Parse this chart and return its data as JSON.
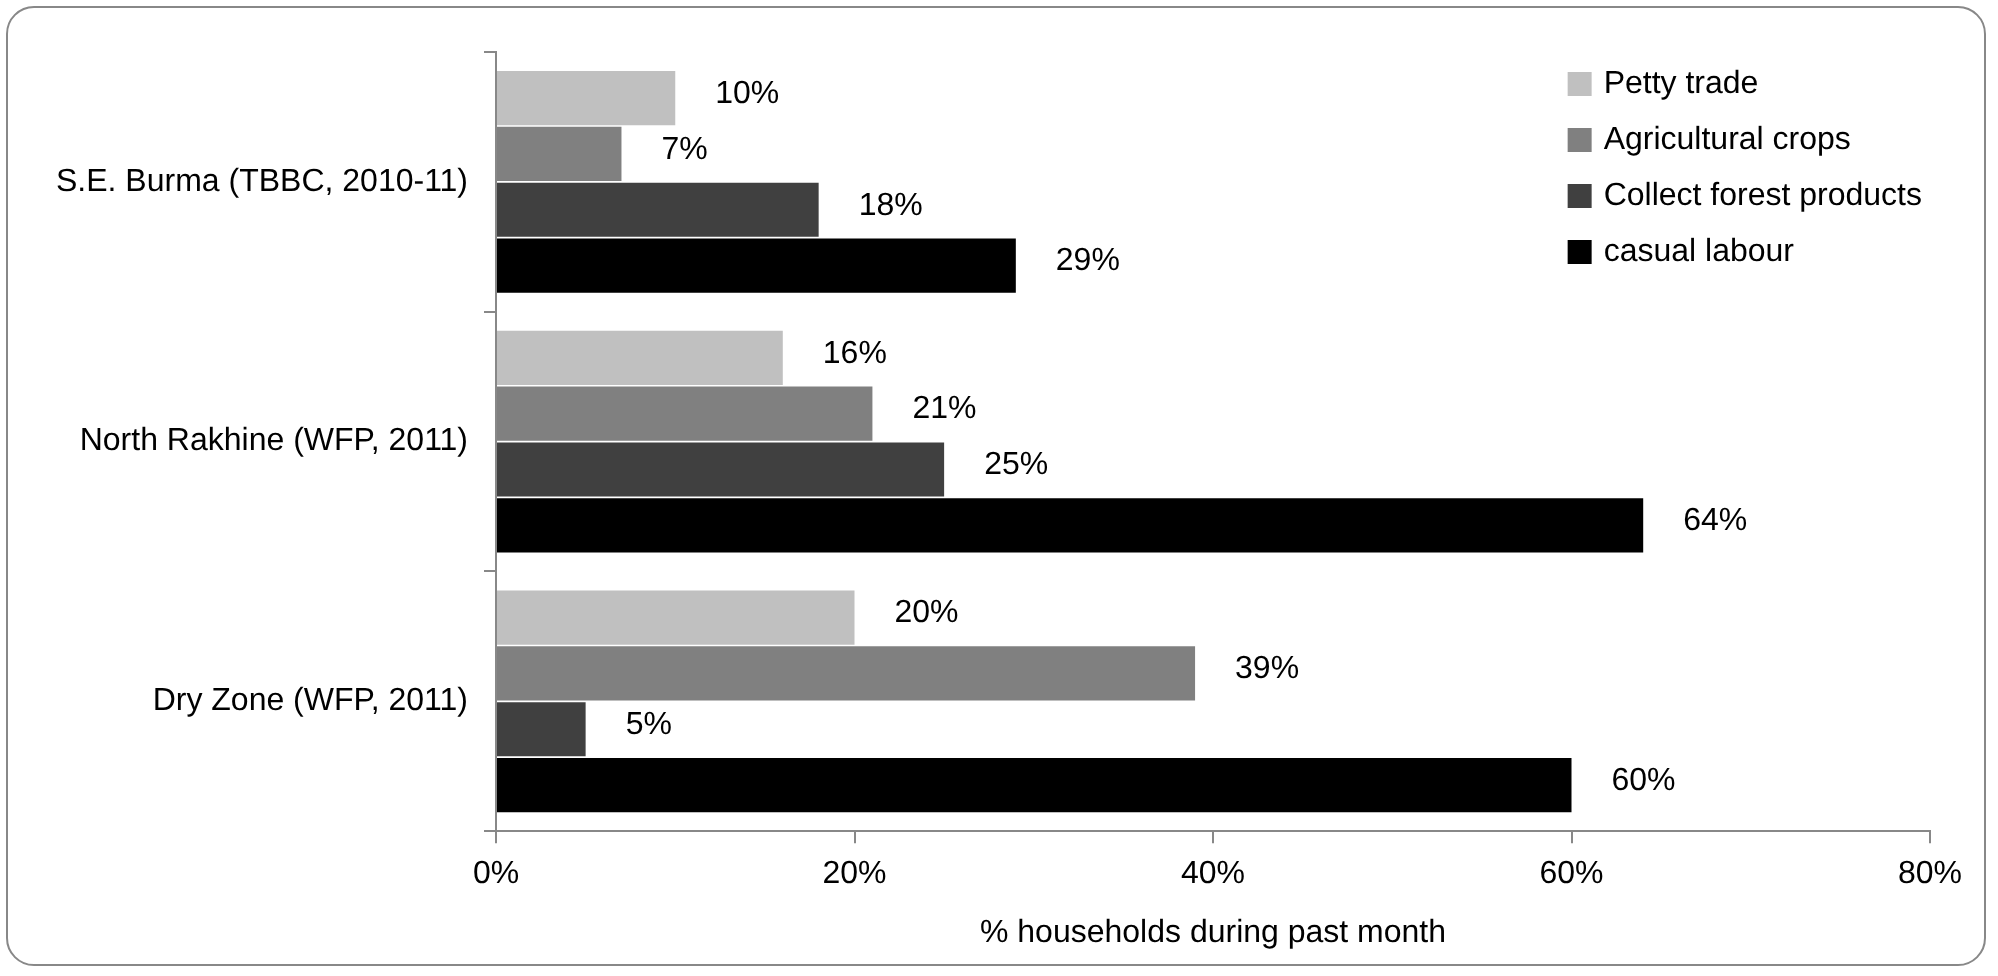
{
  "chart_data": {
    "type": "bar",
    "orientation": "horizontal",
    "xlabel": "% households during past month",
    "categories": [
      "S.E. Burma (TBBC, 2010-11)",
      "North Rakhine (WFP, 2011)",
      "Dry Zone (WFP, 2011)"
    ],
    "series": [
      {
        "name": "Petty trade",
        "color": "#c0c0c0",
        "values": [
          10,
          16,
          20
        ],
        "value_labels": [
          "10%",
          "16%",
          "20%"
        ]
      },
      {
        "name": "Agricultural crops",
        "color": "#808080",
        "values": [
          7,
          21,
          39
        ],
        "value_labels": [
          "7%",
          "21%",
          "39%"
        ]
      },
      {
        "name": "Collect forest products",
        "color": "#404040",
        "values": [
          18,
          25,
          5
        ],
        "value_labels": [
          "18%",
          "25%",
          "5%"
        ]
      },
      {
        "name": "casual labour",
        "color": "#000000",
        "values": [
          29,
          64,
          60
        ],
        "value_labels": [
          "29%",
          "64%",
          "60%"
        ]
      }
    ],
    "xlim": [
      0,
      80
    ],
    "xticks": [
      {
        "value": 0,
        "label": "0%"
      },
      {
        "value": 20,
        "label": "20%"
      },
      {
        "value": 40,
        "label": "40%"
      },
      {
        "value": 60,
        "label": "60%"
      },
      {
        "value": 80,
        "label": "80%"
      }
    ],
    "grid": false,
    "legend": "top right"
  }
}
